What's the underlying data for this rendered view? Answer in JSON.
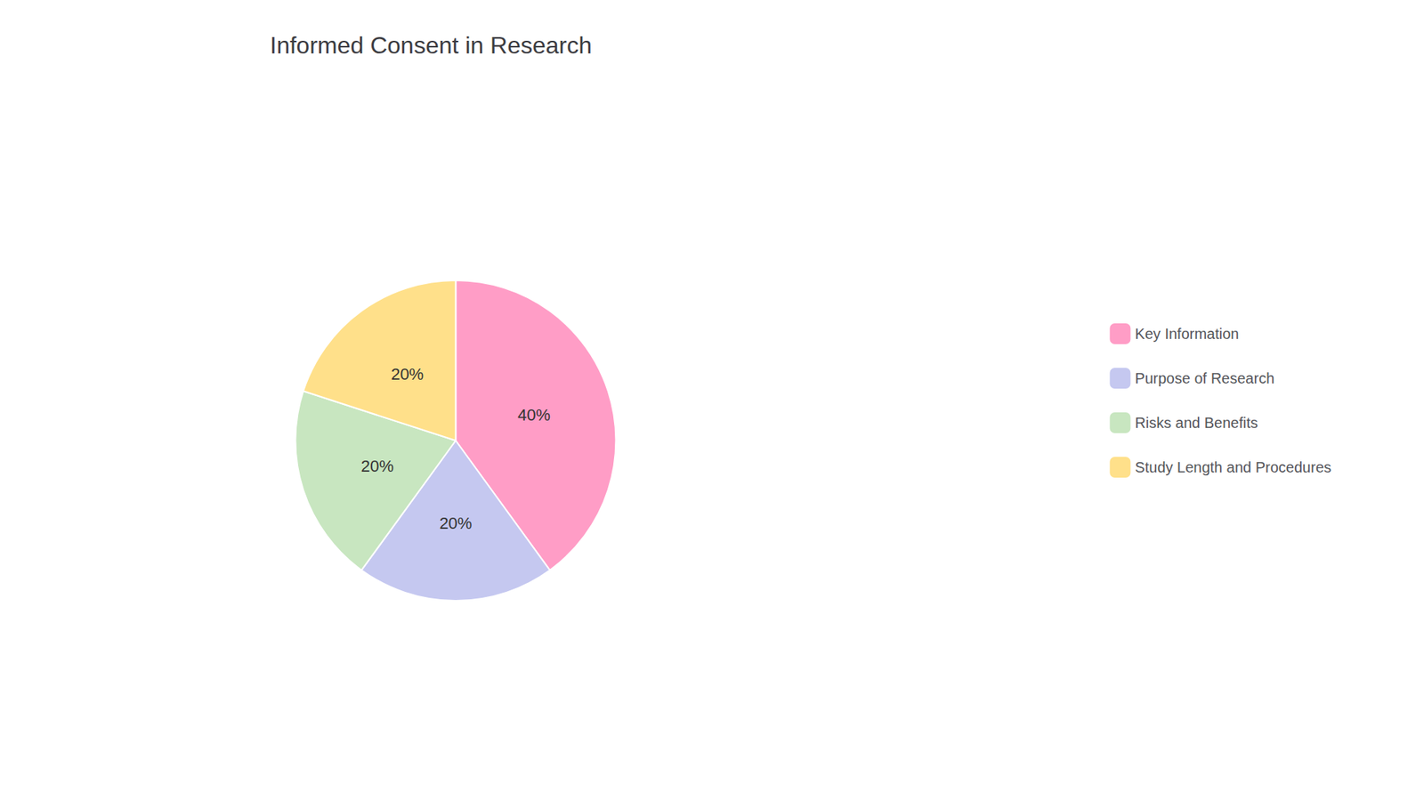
{
  "chart_data": {
    "type": "pie",
    "title": "Informed Consent in Research",
    "categories": [
      "Key Information",
      "Purpose of Research",
      "Risks and Benefits",
      "Study Length and Procedures"
    ],
    "values": [
      40,
      20,
      20,
      20
    ],
    "value_labels": [
      "40%",
      "20%",
      "20%",
      "20%"
    ],
    "colors": [
      "#FF9DC6",
      "#C5C8F0",
      "#C8E6C0",
      "#FFE08A"
    ],
    "data_labels": true,
    "legend": "right"
  }
}
